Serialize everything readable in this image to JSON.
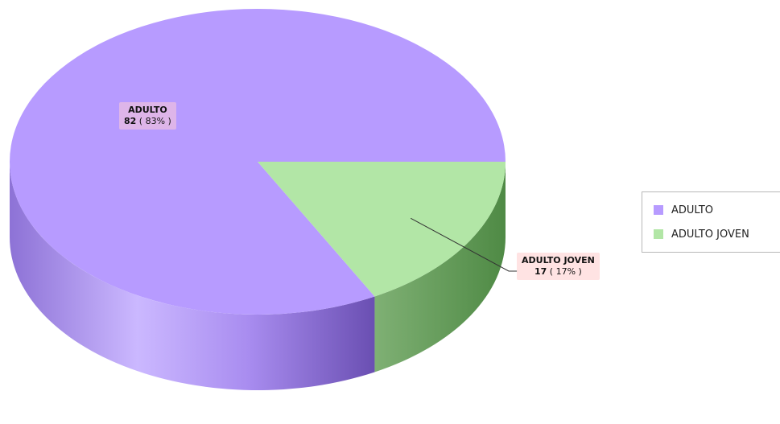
{
  "chart_data": {
    "type": "pie",
    "categories": [
      "ADULTO",
      "ADULTO JOVEN"
    ],
    "values": [
      82,
      17
    ],
    "percents": [
      "83%",
      "17%"
    ],
    "colors": {
      "ADULTO": "#b79bff",
      "ADULTO JOVEN": "#b2e6a6"
    }
  },
  "labels": [
    {
      "name": "ADULTO",
      "value": "82",
      "pct": " ( 83% )"
    },
    {
      "name": "ADULTO JOVEN",
      "value": "17",
      "pct": " ( 17% )"
    }
  ],
  "legend": [
    {
      "label": "ADULTO",
      "color": "#b79bff"
    },
    {
      "label": "ADULTO JOVEN",
      "color": "#b2e6a6"
    }
  ]
}
